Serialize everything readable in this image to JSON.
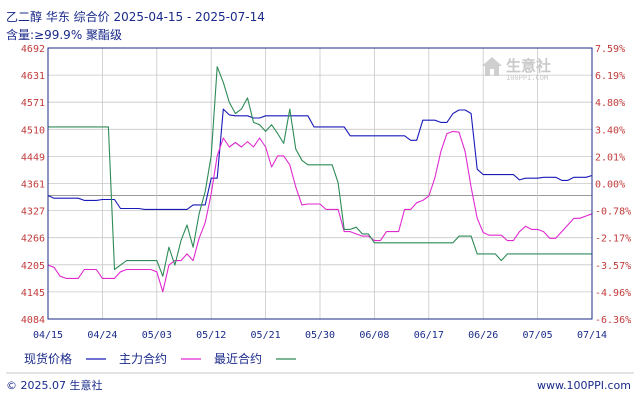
{
  "header": {
    "title": "乙二醇 华东 综合价 2025-04-15 - 2025-07-14",
    "subtitle": "含量:≥99.9% 聚酯级"
  },
  "watermark": {
    "name": "生意社",
    "url": "100PPI.COM"
  },
  "footer": {
    "left": "© 2025.07 生意社",
    "right": "www.100PPI.com"
  },
  "colors": {
    "spot": "#1a1ab8",
    "main": "#e02ad0",
    "recent": "#2e8b57",
    "axis": "#1a2a8a",
    "tick": "#c23b3b"
  },
  "chart_data": {
    "type": "line",
    "title": "乙二醇 华东 综合价 2025-04-15 - 2025-07-14",
    "subtitle": "含量:≥99.9% 聚酯级",
    "y_left_ticks": [
      "4692",
      "4631",
      "4571",
      "4510",
      "4449",
      "4361",
      "4327",
      "4266",
      "4205",
      "4145",
      "4084"
    ],
    "y_right_ticks": [
      "7.59%",
      "6.19%",
      "4.80%",
      "3.40%",
      "2.01%",
      "0.00%",
      "-0.78%",
      "-2.17%",
      "-3.57%",
      "-4.96%",
      "-6.36%"
    ],
    "ylim": [
      4084,
      4692
    ],
    "baseline": 4361,
    "x_ticks": [
      "04/15",
      "04/24",
      "05/03",
      "05/12",
      "05/21",
      "05/30",
      "06/08",
      "06/17",
      "06/26",
      "07/05",
      "07/14"
    ],
    "xlim": [
      "2025-04-15",
      "2025-07-14"
    ],
    "grid": true,
    "legend_position": "bottom",
    "series": [
      {
        "name": "现货价格",
        "color": "#1a1ab8",
        "points": [
          [
            "2025-04-15",
            4361
          ],
          [
            "2025-04-16",
            4355
          ],
          [
            "2025-04-20",
            4355
          ],
          [
            "2025-04-21",
            4350
          ],
          [
            "2025-04-23",
            4350
          ],
          [
            "2025-04-24",
            4352
          ],
          [
            "2025-04-26",
            4352
          ],
          [
            "2025-04-27",
            4332
          ],
          [
            "2025-04-30",
            4332
          ],
          [
            "2025-05-01",
            4330
          ],
          [
            "2025-05-08",
            4330
          ],
          [
            "2025-05-09",
            4340
          ],
          [
            "2025-05-11",
            4340
          ],
          [
            "2025-05-12",
            4400
          ],
          [
            "2025-05-13",
            4400
          ],
          [
            "2025-05-14",
            4555
          ],
          [
            "2025-05-15",
            4542
          ],
          [
            "2025-05-16",
            4540
          ],
          [
            "2025-05-18",
            4540
          ],
          [
            "2025-05-19",
            4535
          ],
          [
            "2025-05-20",
            4535
          ],
          [
            "2025-05-21",
            4540
          ],
          [
            "2025-05-28",
            4540
          ],
          [
            "2025-05-29",
            4515
          ],
          [
            "2025-06-03",
            4515
          ],
          [
            "2025-06-04",
            4495
          ],
          [
            "2025-06-13",
            4495
          ],
          [
            "2025-06-14",
            4485
          ],
          [
            "2025-06-15",
            4485
          ],
          [
            "2025-06-16",
            4530
          ],
          [
            "2025-06-18",
            4530
          ],
          [
            "2025-06-19",
            4525
          ],
          [
            "2025-06-20",
            4525
          ],
          [
            "2025-06-21",
            4545
          ],
          [
            "2025-06-22",
            4553
          ],
          [
            "2025-06-23",
            4553
          ],
          [
            "2025-06-24",
            4545
          ],
          [
            "2025-06-25",
            4420
          ],
          [
            "2025-06-26",
            4408
          ],
          [
            "2025-07-01",
            4408
          ],
          [
            "2025-07-02",
            4396
          ],
          [
            "2025-07-03",
            4400
          ],
          [
            "2025-07-05",
            4400
          ],
          [
            "2025-07-06",
            4402
          ],
          [
            "2025-07-08",
            4402
          ],
          [
            "2025-07-09",
            4395
          ],
          [
            "2025-07-10",
            4395
          ],
          [
            "2025-07-11",
            4402
          ],
          [
            "2025-07-13",
            4402
          ],
          [
            "2025-07-14",
            4406
          ]
        ]
      },
      {
        "name": "主力合约",
        "color": "#e02ad0",
        "points": [
          [
            "2025-04-15",
            4205
          ],
          [
            "2025-04-16",
            4200
          ],
          [
            "2025-04-17",
            4180
          ],
          [
            "2025-04-18",
            4175
          ],
          [
            "2025-04-19",
            4175
          ],
          [
            "2025-04-20",
            4175
          ],
          [
            "2025-04-21",
            4195
          ],
          [
            "2025-04-23",
            4195
          ],
          [
            "2025-04-24",
            4175
          ],
          [
            "2025-04-26",
            4175
          ],
          [
            "2025-04-27",
            4190
          ],
          [
            "2025-04-28",
            4195
          ],
          [
            "2025-04-30",
            4195
          ],
          [
            "2025-05-02",
            4195
          ],
          [
            "2025-05-03",
            4190
          ],
          [
            "2025-05-04",
            4145
          ],
          [
            "2025-05-05",
            4205
          ],
          [
            "2025-05-06",
            4215
          ],
          [
            "2025-05-07",
            4215
          ],
          [
            "2025-05-08",
            4230
          ],
          [
            "2025-05-09",
            4215
          ],
          [
            "2025-05-10",
            4265
          ],
          [
            "2025-05-11",
            4300
          ],
          [
            "2025-05-12",
            4365
          ],
          [
            "2025-05-13",
            4450
          ],
          [
            "2025-05-14",
            4490
          ],
          [
            "2025-05-15",
            4470
          ],
          [
            "2025-05-16",
            4480
          ],
          [
            "2025-05-17",
            4470
          ],
          [
            "2025-05-18",
            4482
          ],
          [
            "2025-05-19",
            4470
          ],
          [
            "2025-05-20",
            4490
          ],
          [
            "2025-05-21",
            4470
          ],
          [
            "2025-05-22",
            4425
          ],
          [
            "2025-05-23",
            4450
          ],
          [
            "2025-05-24",
            4450
          ],
          [
            "2025-05-25",
            4430
          ],
          [
            "2025-05-26",
            4380
          ],
          [
            "2025-05-27",
            4340
          ],
          [
            "2025-05-28",
            4342
          ],
          [
            "2025-05-30",
            4342
          ],
          [
            "2025-05-31",
            4330
          ],
          [
            "2025-06-02",
            4330
          ],
          [
            "2025-06-03",
            4280
          ],
          [
            "2025-06-04",
            4280
          ],
          [
            "2025-06-06",
            4270
          ],
          [
            "2025-06-07",
            4270
          ],
          [
            "2025-06-08",
            4260
          ],
          [
            "2025-06-09",
            4260
          ],
          [
            "2025-06-10",
            4280
          ],
          [
            "2025-06-12",
            4280
          ],
          [
            "2025-06-13",
            4330
          ],
          [
            "2025-06-14",
            4330
          ],
          [
            "2025-06-15",
            4345
          ],
          [
            "2025-06-16",
            4350
          ],
          [
            "2025-06-17",
            4360
          ],
          [
            "2025-06-18",
            4400
          ],
          [
            "2025-06-19",
            4460
          ],
          [
            "2025-06-20",
            4500
          ],
          [
            "2025-06-21",
            4505
          ],
          [
            "2025-06-22",
            4503
          ],
          [
            "2025-06-23",
            4460
          ],
          [
            "2025-06-24",
            4380
          ],
          [
            "2025-06-25",
            4310
          ],
          [
            "2025-06-26",
            4278
          ],
          [
            "2025-06-27",
            4272
          ],
          [
            "2025-06-29",
            4272
          ],
          [
            "2025-06-30",
            4260
          ],
          [
            "2025-07-01",
            4260
          ],
          [
            "2025-07-02",
            4280
          ],
          [
            "2025-07-03",
            4292
          ],
          [
            "2025-07-04",
            4285
          ],
          [
            "2025-07-05",
            4285
          ],
          [
            "2025-07-06",
            4280
          ],
          [
            "2025-07-07",
            4265
          ],
          [
            "2025-07-08",
            4265
          ],
          [
            "2025-07-09",
            4280
          ],
          [
            "2025-07-10",
            4295
          ],
          [
            "2025-07-11",
            4310
          ],
          [
            "2025-07-12",
            4310
          ],
          [
            "2025-07-13",
            4315
          ],
          [
            "2025-07-14",
            4320
          ]
        ]
      },
      {
        "name": "最近合约",
        "color": "#2e8b57",
        "points": [
          [
            "2025-04-15",
            4515
          ],
          [
            "2025-04-24",
            4515
          ],
          [
            "2025-04-25",
            4515
          ],
          [
            "2025-04-26",
            4195
          ],
          [
            "2025-04-27",
            4205
          ],
          [
            "2025-04-28",
            4215
          ],
          [
            "2025-04-30",
            4215
          ],
          [
            "2025-05-02",
            4215
          ],
          [
            "2025-05-03",
            4215
          ],
          [
            "2025-05-04",
            4180
          ],
          [
            "2025-05-05",
            4245
          ],
          [
            "2025-05-06",
            4205
          ],
          [
            "2025-05-07",
            4260
          ],
          [
            "2025-05-08",
            4295
          ],
          [
            "2025-05-09",
            4245
          ],
          [
            "2025-05-10",
            4320
          ],
          [
            "2025-05-11",
            4370
          ],
          [
            "2025-05-12",
            4450
          ],
          [
            "2025-05-13",
            4650
          ],
          [
            "2025-05-14",
            4615
          ],
          [
            "2025-05-15",
            4570
          ],
          [
            "2025-05-16",
            4545
          ],
          [
            "2025-05-17",
            4555
          ],
          [
            "2025-05-18",
            4580
          ],
          [
            "2025-05-19",
            4525
          ],
          [
            "2025-05-20",
            4520
          ],
          [
            "2025-05-21",
            4505
          ],
          [
            "2025-05-22",
            4520
          ],
          [
            "2025-05-23",
            4500
          ],
          [
            "2025-05-24",
            4478
          ],
          [
            "2025-05-25",
            4555
          ],
          [
            "2025-05-26",
            4465
          ],
          [
            "2025-05-27",
            4440
          ],
          [
            "2025-05-28",
            4430
          ],
          [
            "2025-05-29",
            4430
          ],
          [
            "2025-06-01",
            4430
          ],
          [
            "2025-06-02",
            4390
          ],
          [
            "2025-06-03",
            4285
          ],
          [
            "2025-06-04",
            4285
          ],
          [
            "2025-06-05",
            4290
          ],
          [
            "2025-06-06",
            4275
          ],
          [
            "2025-06-07",
            4275
          ],
          [
            "2025-06-08",
            4255
          ],
          [
            "2025-06-18",
            4255
          ],
          [
            "2025-06-21",
            4255
          ],
          [
            "2025-06-22",
            4270
          ],
          [
            "2025-06-24",
            4270
          ],
          [
            "2025-06-25",
            4230
          ],
          [
            "2025-06-28",
            4230
          ],
          [
            "2025-06-29",
            4215
          ],
          [
            "2025-06-30",
            4230
          ],
          [
            "2025-07-14",
            4230
          ]
        ]
      }
    ],
    "legend": [
      "现货价格",
      "主力合约",
      "最近合约"
    ]
  }
}
